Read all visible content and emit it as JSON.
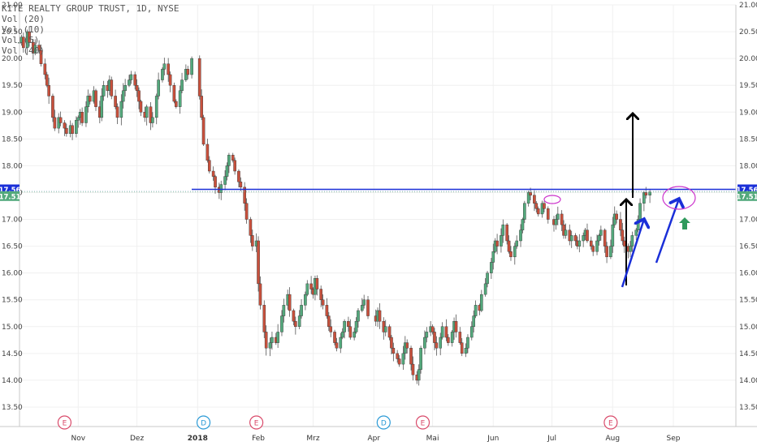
{
  "legend": {
    "title": "KITE REALTY GROUP TRUST, 1D, NYSE",
    "indicators": [
      "Vol (20)",
      "Vol (10)",
      "Vol (5)",
      "Vol (40)"
    ]
  },
  "colors": {
    "up": "#53a97c",
    "down": "#c8503c",
    "resistance_line": "#1a2fd8",
    "price_badge": "#1a2fd8",
    "last_badge": "#53a97c",
    "annotation_ellipse": "#cc33cc",
    "arrow_black": "#000000",
    "arrow_blue": "#1a2fd8",
    "arrow_green": "#2f9a5c",
    "event_E": "#d94a6a",
    "event_D": "#2b9ad6",
    "grid": "#f0f0f0"
  },
  "price_badges": {
    "resistance": "17.56",
    "last": "17.51"
  },
  "events": [
    {
      "label": "E",
      "type": "earnings",
      "date": "2017-10-25"
    },
    {
      "label": "D",
      "type": "dividend",
      "date": "2018-01-04"
    },
    {
      "label": "E",
      "type": "earnings",
      "date": "2018-01-31"
    },
    {
      "label": "D",
      "type": "dividend",
      "date": "2018-04-06"
    },
    {
      "label": "E",
      "type": "earnings",
      "date": "2018-04-26"
    },
    {
      "label": "E",
      "type": "earnings",
      "date": "2018-07-31"
    }
  ],
  "chart_data": {
    "type": "candlestick",
    "title": "KITE REALTY GROUP TRUST, 1D, NYSE",
    "xlabel": "",
    "ylabel": "",
    "ylim": [
      13.5,
      21.0
    ],
    "y_ticks": [
      "21.00",
      "20.50",
      "20.00",
      "19.50",
      "19.00",
      "18.50",
      "18.00",
      "17.50",
      "17.00",
      "16.50",
      "16.00",
      "15.50",
      "15.00",
      "14.50",
      "14.00",
      "13.50"
    ],
    "x_ticks": [
      "Nov",
      "Dez",
      "2018",
      "Feb",
      "Mrz",
      "Apr",
      "Mai",
      "Jun",
      "Jul",
      "Aug",
      "Sep"
    ],
    "x_range": [
      "2017-10-02",
      "2018-09-18"
    ],
    "grid": true,
    "resistance_level": 17.56,
    "last_price": 17.51,
    "daily_closes": [
      {
        "segment": "2017-10-02 to 2017-10-31",
        "closes": [
          20.3,
          20.4,
          20.2,
          20.5,
          20.3,
          20.1,
          20.25,
          20.15,
          19.9,
          19.7,
          19.5,
          19.3,
          18.9,
          18.7,
          18.9,
          18.8,
          18.7,
          18.6,
          18.75,
          18.6,
          18.85
        ]
      },
      {
        "segment": "2017-11-01 to 2017-11-30",
        "closes": [
          18.9,
          19.0,
          18.8,
          19.1,
          19.3,
          19.2,
          19.4,
          19.1,
          18.9,
          19.3,
          19.5,
          19.4,
          19.6,
          19.3,
          19.1,
          18.9,
          19.2,
          19.4,
          19.5,
          19.6,
          19.7,
          19.5
        ]
      },
      {
        "segment": "2017-12-01 to 2017-12-29",
        "closes": [
          19.4,
          19.2,
          19.0,
          18.9,
          19.1,
          18.8,
          18.9,
          19.3,
          19.6,
          19.8,
          19.9,
          19.7,
          19.5,
          19.2,
          19.1,
          19.4,
          19.6,
          19.8,
          19.7,
          20.0
        ]
      },
      {
        "segment": "2018-01-02 to 2018-01-31",
        "closes": [
          19.3,
          18.9,
          18.4,
          18.1,
          17.9,
          17.8,
          17.6,
          17.5,
          17.65,
          17.8,
          18.0,
          18.2,
          18.1,
          17.9,
          17.7,
          17.6,
          17.3,
          17.0,
          16.7,
          16.5,
          16.6
        ]
      },
      {
        "segment": "2018-02-01 to 2018-02-28",
        "closes": [
          15.8,
          15.4,
          14.9,
          14.6,
          14.7,
          14.8,
          14.7,
          14.9,
          15.2,
          15.4,
          15.6,
          15.3,
          15.1,
          15.0,
          15.2,
          15.4,
          15.6,
          15.8,
          15.7
        ]
      },
      {
        "segment": "2018-03-01 to 2018-03-29",
        "closes": [
          15.6,
          15.9,
          15.7,
          15.5,
          15.4,
          15.2,
          15.0,
          14.9,
          14.7,
          14.6,
          14.8,
          14.9,
          15.1,
          15.0,
          14.8,
          14.9,
          15.1,
          15.3,
          15.4,
          15.5,
          15.2
        ]
      },
      {
        "segment": "2018-04-02 to 2018-04-30",
        "closes": [
          15.1,
          15.3,
          15.1,
          14.9,
          15.0,
          14.8,
          14.6,
          14.5,
          14.4,
          14.3,
          14.5,
          14.7,
          14.6,
          14.3,
          14.1,
          14.0,
          14.2,
          14.6,
          14.8,
          14.9,
          15.0
        ]
      },
      {
        "segment": "2018-05-01 to 2018-05-31",
        "closes": [
          14.9,
          14.7,
          14.6,
          14.8,
          15.0,
          14.8,
          14.7,
          14.9,
          15.1,
          14.9,
          14.7,
          14.5,
          14.6,
          14.8,
          15.0,
          15.2,
          15.4,
          15.3,
          15.6,
          15.8,
          16.0,
          16.2
        ]
      },
      {
        "segment": "2018-06-01 to 2018-06-29",
        "closes": [
          16.4,
          16.6,
          16.5,
          16.7,
          16.9,
          16.6,
          16.4,
          16.3,
          16.5,
          16.6,
          16.8,
          17.0,
          17.3,
          17.5,
          17.45,
          17.3,
          17.2,
          17.1,
          17.3,
          17.2,
          17.0
        ]
      },
      {
        "segment": "2018-07-02 to 2018-07-31",
        "closes": [
          16.9,
          17.0,
          17.1,
          16.9,
          16.7,
          16.8,
          16.6,
          16.7,
          16.6,
          16.5,
          16.6,
          16.7,
          16.8,
          16.6,
          16.5,
          16.4,
          16.6,
          16.7,
          16.8,
          16.5,
          16.3,
          16.5
        ]
      },
      {
        "segment": "2018-08-01 to 2018-08-20",
        "closes": [
          16.9,
          17.1,
          17.0,
          16.8,
          16.6,
          16.5,
          16.4,
          16.5,
          16.7,
          16.8,
          17.0,
          17.3,
          17.5,
          17.45,
          17.51
        ]
      }
    ]
  }
}
